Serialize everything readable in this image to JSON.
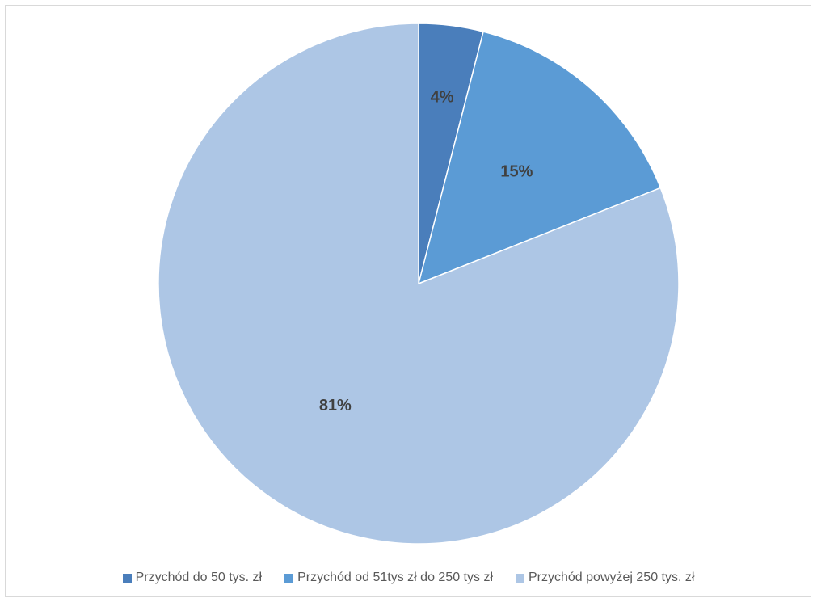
{
  "chart_data": {
    "type": "pie",
    "categories": [
      "Przychód do 50 tys. zł",
      "Przychód od 51tys zł do 250 tys zł",
      "Przychód powyżej 250 tys. zł"
    ],
    "values": [
      4,
      15,
      81
    ],
    "data_labels": [
      "4%",
      "15%",
      "81%"
    ],
    "colors": [
      "#4a7ebb",
      "#5b9bd5",
      "#adc6e5"
    ],
    "title": "",
    "legend_position": "bottom",
    "start_angle_deg": 0,
    "direction": "clockwise"
  }
}
